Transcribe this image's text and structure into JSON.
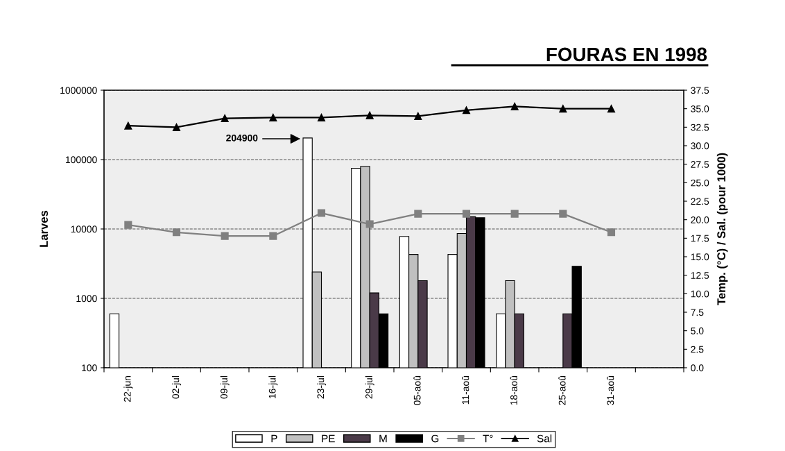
{
  "chart_data": {
    "type": "bar",
    "title": "FOURAS EN 1998",
    "ylabel": "Larves",
    "y2label": "Temp. (°C) / Sal. (pour 1000)",
    "categories": [
      "22-jun",
      "02-jul",
      "09-jul",
      "16-jul",
      "23-jul",
      "29-jul",
      "05-aoû",
      "11-aoû",
      "18-aoû",
      "25-aoû",
      "31-aoû",
      null
    ],
    "series": [
      {
        "name": "P",
        "color": "#ffffff",
        "values": [
          600,
          null,
          null,
          null,
          204900,
          75000,
          7800,
          4300,
          600,
          null,
          null,
          null
        ]
      },
      {
        "name": "PE",
        "color": "#c0c0c0",
        "values": [
          null,
          null,
          null,
          null,
          2400,
          80000,
          4300,
          8600,
          1800,
          null,
          null,
          null
        ]
      },
      {
        "name": "M",
        "color": "#4a3a48",
        "values": [
          null,
          null,
          null,
          null,
          null,
          1200,
          1800,
          15000,
          600,
          600,
          null,
          null
        ]
      },
      {
        "name": "G",
        "color": "#000000",
        "values": [
          null,
          null,
          null,
          null,
          null,
          600,
          null,
          14500,
          null,
          2900,
          null,
          null
        ]
      },
      {
        "name": "T°",
        "type": "line",
        "axis": "y2",
        "color": "#808080",
        "marker": "square",
        "values": [
          19.3,
          18.3,
          17.8,
          17.8,
          20.9,
          19.4,
          20.8,
          20.8,
          20.8,
          20.8,
          18.3,
          null
        ]
      },
      {
        "name": "Sal",
        "type": "line",
        "axis": "y2",
        "color": "#000000",
        "marker": "triangle",
        "values": [
          32.7,
          32.5,
          33.7,
          33.8,
          33.8,
          34.1,
          34.0,
          34.8,
          35.3,
          35.0,
          35.0,
          null
        ]
      }
    ],
    "log": "y",
    "ylim": [
      100,
      1000000
    ],
    "yticks": [
      100,
      1000,
      10000,
      100000,
      1000000
    ],
    "y2lim": [
      0,
      37.5
    ],
    "y2ticks": [
      {
        "value": 0,
        "label": "0.0"
      },
      {
        "value": 2.5,
        "label": "2.5"
      },
      {
        "value": 5,
        "label": "5.0"
      },
      {
        "value": 7.5,
        "label": "7.5"
      },
      {
        "value": 10,
        "label": "10.0"
      },
      {
        "value": 12.5,
        "label": "12.5"
      },
      {
        "value": 15,
        "label": "15.0"
      },
      {
        "value": 17.5,
        "label": "17.5"
      },
      {
        "value": 20,
        "label": "20.0"
      },
      {
        "value": 22.5,
        "label": "22.5"
      },
      {
        "value": 25,
        "label": "25.0"
      },
      {
        "value": 27.5,
        "label": "27.5"
      },
      {
        "value": 30,
        "label": "30.0"
      },
      {
        "value": 32.5,
        "label": "32.5"
      },
      {
        "value": 35,
        "label": "35.0"
      },
      {
        "value": 37.5,
        "label": "37.5"
      }
    ],
    "grid": "y",
    "legend": "bottom",
    "annotations": [
      "204900"
    ]
  }
}
